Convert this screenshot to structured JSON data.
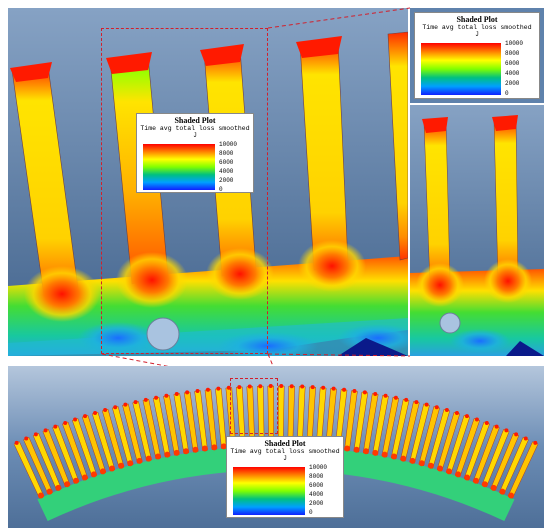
{
  "legend": {
    "title": "Shaded Plot",
    "subtitle": "Time avg total loss smoothed",
    "unit": "J",
    "ticks": [
      "10000",
      "8000",
      "6000",
      "4000",
      "2000",
      "0"
    ]
  },
  "colors": {
    "background_top": "#7f9cc0",
    "background_bottom": "#3e5f88",
    "highlight_frame": "#d21f2b"
  }
}
